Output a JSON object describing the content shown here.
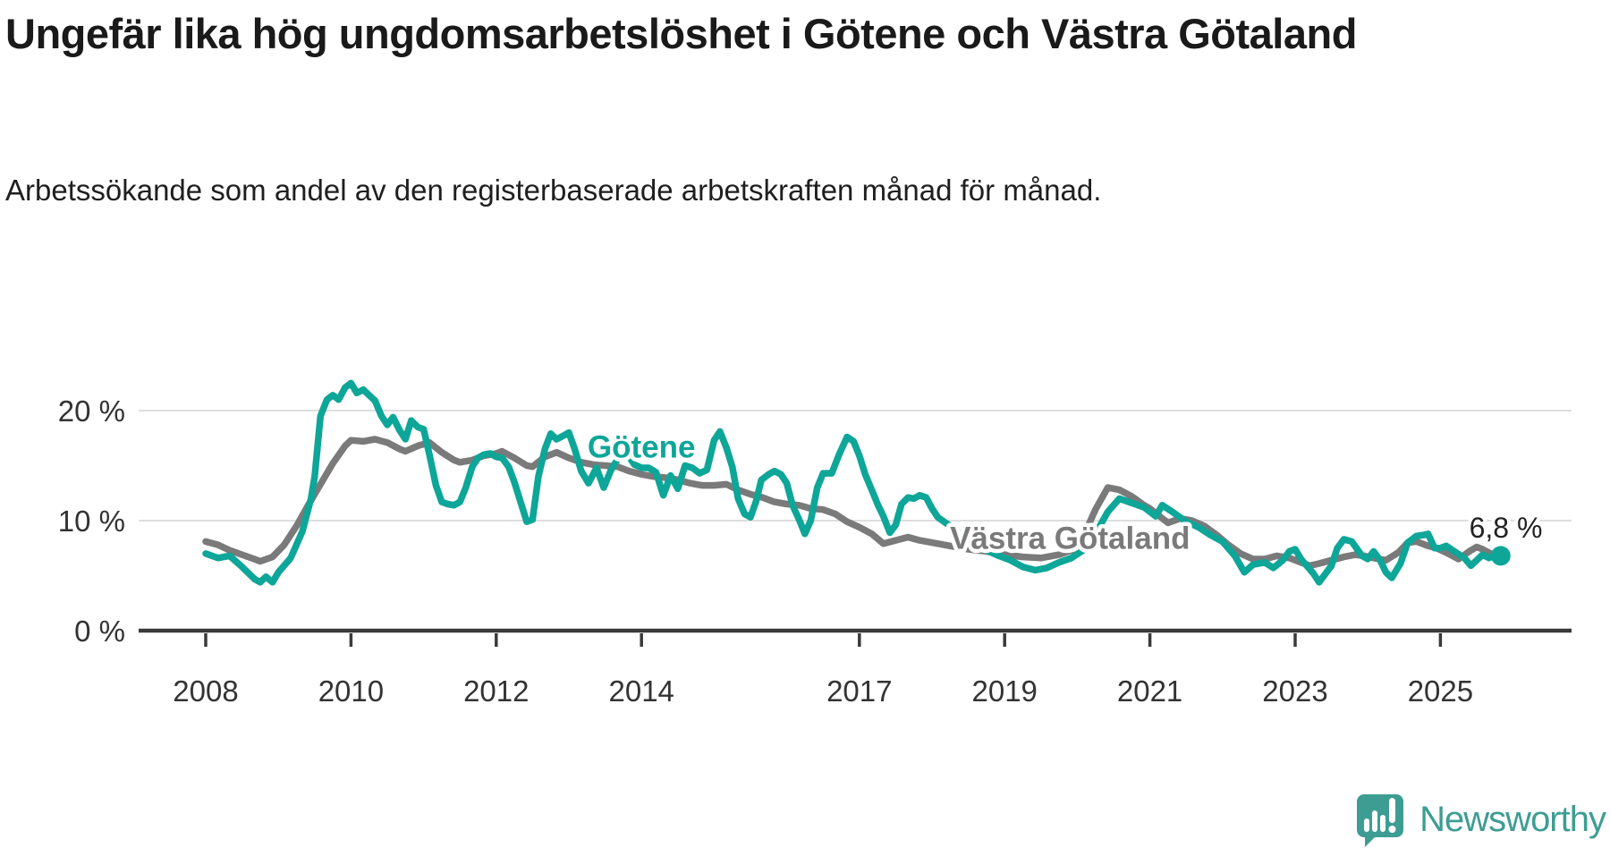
{
  "header": {
    "title": "Ungefär lika hög ungdomsarbetslöshet i Götene och Västra Götaland",
    "subtitle": "Arbetssökande som andel av den registerbaserade arbetskraften månad för månad."
  },
  "branding": {
    "name": "Newsworthy",
    "color": "#3d9d93"
  },
  "colors": {
    "highlight_line": "#0da698",
    "comparison_line": "#7a7a7a",
    "axis": "#3a3a3a",
    "gridline": "#dedede",
    "tick_text": "#333333",
    "annotation_text": "#222222"
  },
  "chart_data": {
    "type": "line",
    "title": "Ungefär lika hög ungdomsarbetslöshet i Götene och Västra Götaland",
    "subtitle": "Arbetssökande som andel av den registerbaserade arbetskraften månad för månad.",
    "unit": "%",
    "grid": true,
    "x_axis": {
      "ticks": [
        2008,
        2010,
        2012,
        2014,
        2017,
        2019,
        2021,
        2023,
        2025
      ],
      "tick_labels": [
        "2008",
        "2010",
        "2012",
        "2014",
        "2017",
        "2019",
        "2021",
        "2023",
        "2025"
      ],
      "range": [
        2008.0,
        2025.83
      ]
    },
    "y_axis": {
      "ticks": [
        0,
        10,
        20
      ],
      "tick_labels": [
        "0 %",
        "10 %",
        "20 %"
      ],
      "range": [
        0,
        23
      ]
    },
    "annotation": {
      "text": "6,8 %",
      "x": 2025.9,
      "y": 9.35
    },
    "series": [
      {
        "name": "Västra Götaland",
        "color": "#7a7a7a",
        "label": {
          "text": "Västra Götaland",
          "x": 2019.9,
          "y": 8.4
        },
        "end_dot": false,
        "points": [
          [
            2008.0,
            8.1
          ],
          [
            2008.17,
            7.8
          ],
          [
            2008.33,
            7.3
          ],
          [
            2008.5,
            6.9
          ],
          [
            2008.67,
            6.5
          ],
          [
            2008.75,
            6.3
          ],
          [
            2008.92,
            6.7
          ],
          [
            2009.08,
            7.8
          ],
          [
            2009.25,
            9.5
          ],
          [
            2009.42,
            11.5
          ],
          [
            2009.58,
            13.3
          ],
          [
            2009.75,
            15.2
          ],
          [
            2009.92,
            16.8
          ],
          [
            2010.0,
            17.3
          ],
          [
            2010.17,
            17.2
          ],
          [
            2010.33,
            17.4
          ],
          [
            2010.5,
            17.1
          ],
          [
            2010.67,
            16.5
          ],
          [
            2010.75,
            16.3
          ],
          [
            2010.92,
            16.8
          ],
          [
            2011.08,
            17.1
          ],
          [
            2011.25,
            16.2
          ],
          [
            2011.42,
            15.5
          ],
          [
            2011.5,
            15.3
          ],
          [
            2011.67,
            15.5
          ],
          [
            2011.83,
            15.9
          ],
          [
            2012.0,
            16.1
          ],
          [
            2012.08,
            16.3
          ],
          [
            2012.25,
            15.7
          ],
          [
            2012.42,
            15.0
          ],
          [
            2012.5,
            14.9
          ],
          [
            2012.67,
            15.8
          ],
          [
            2012.83,
            16.2
          ],
          [
            2013.0,
            15.7
          ],
          [
            2013.17,
            15.3
          ],
          [
            2013.33,
            15.1
          ],
          [
            2013.5,
            15.0
          ],
          [
            2013.67,
            14.9
          ],
          [
            2013.83,
            14.5
          ],
          [
            2014.0,
            14.2
          ],
          [
            2014.17,
            14.0
          ],
          [
            2014.33,
            13.9
          ],
          [
            2014.5,
            13.7
          ],
          [
            2014.67,
            13.4
          ],
          [
            2014.83,
            13.2
          ],
          [
            2015.0,
            13.2
          ],
          [
            2015.17,
            13.3
          ],
          [
            2015.33,
            12.8
          ],
          [
            2015.5,
            12.4
          ],
          [
            2015.67,
            12.1
          ],
          [
            2015.83,
            11.7
          ],
          [
            2016.0,
            11.5
          ],
          [
            2016.17,
            11.4
          ],
          [
            2016.33,
            11.1
          ],
          [
            2016.5,
            11.0
          ],
          [
            2016.67,
            10.6
          ],
          [
            2016.83,
            9.9
          ],
          [
            2017.0,
            9.4
          ],
          [
            2017.17,
            8.8
          ],
          [
            2017.33,
            7.9
          ],
          [
            2017.5,
            8.2
          ],
          [
            2017.67,
            8.5
          ],
          [
            2017.83,
            8.2
          ],
          [
            2018.0,
            8.0
          ],
          [
            2018.25,
            7.7
          ],
          [
            2018.5,
            7.4
          ],
          [
            2018.75,
            7.2
          ],
          [
            2019.0,
            6.9
          ],
          [
            2019.25,
            6.7
          ],
          [
            2019.5,
            6.6
          ],
          [
            2019.75,
            6.9
          ],
          [
            2019.92,
            7.3
          ],
          [
            2020.08,
            8.5
          ],
          [
            2020.25,
            11.0
          ],
          [
            2020.42,
            13.0
          ],
          [
            2020.58,
            12.8
          ],
          [
            2020.75,
            12.2
          ],
          [
            2020.92,
            11.4
          ],
          [
            2021.0,
            11.1
          ],
          [
            2021.17,
            10.2
          ],
          [
            2021.25,
            9.8
          ],
          [
            2021.42,
            10.2
          ],
          [
            2021.58,
            10.0
          ],
          [
            2021.75,
            9.5
          ],
          [
            2021.92,
            8.7
          ],
          [
            2022.08,
            7.8
          ],
          [
            2022.25,
            7.0
          ],
          [
            2022.42,
            6.5
          ],
          [
            2022.58,
            6.5
          ],
          [
            2022.75,
            6.8
          ],
          [
            2022.92,
            6.6
          ],
          [
            2023.08,
            6.2
          ],
          [
            2023.2,
            5.9
          ],
          [
            2023.33,
            6.1
          ],
          [
            2023.5,
            6.4
          ],
          [
            2023.67,
            6.7
          ],
          [
            2023.83,
            6.9
          ],
          [
            2023.95,
            6.8
          ],
          [
            2024.08,
            6.6
          ],
          [
            2024.25,
            6.4
          ],
          [
            2024.42,
            7.1
          ],
          [
            2024.55,
            8.0
          ],
          [
            2024.67,
            8.1
          ],
          [
            2024.83,
            7.7
          ],
          [
            2024.95,
            7.5
          ],
          [
            2025.08,
            7.1
          ],
          [
            2025.25,
            6.5
          ],
          [
            2025.42,
            7.3
          ],
          [
            2025.5,
            7.6
          ],
          [
            2025.58,
            7.4
          ],
          [
            2025.75,
            6.8
          ],
          [
            2025.83,
            6.7
          ]
        ]
      },
      {
        "name": "Götene",
        "color": "#0da698",
        "label": {
          "text": "Götene",
          "x": 2014.0,
          "y": 16.7
        },
        "end_dot": true,
        "end_value": "6,8 %",
        "points": [
          [
            2008.0,
            7.0
          ],
          [
            2008.17,
            6.6
          ],
          [
            2008.33,
            6.8
          ],
          [
            2008.5,
            5.8
          ],
          [
            2008.67,
            4.7
          ],
          [
            2008.75,
            4.4
          ],
          [
            2008.83,
            4.9
          ],
          [
            2008.92,
            4.4
          ],
          [
            2009.0,
            5.3
          ],
          [
            2009.17,
            6.6
          ],
          [
            2009.33,
            9.0
          ],
          [
            2009.45,
            12.0
          ],
          [
            2009.5,
            14.0
          ],
          [
            2009.58,
            19.5
          ],
          [
            2009.67,
            21.0
          ],
          [
            2009.75,
            21.4
          ],
          [
            2009.83,
            21.0
          ],
          [
            2009.92,
            22.1
          ],
          [
            2010.0,
            22.5
          ],
          [
            2010.08,
            21.6
          ],
          [
            2010.17,
            21.9
          ],
          [
            2010.25,
            21.4
          ],
          [
            2010.33,
            20.9
          ],
          [
            2010.42,
            19.5
          ],
          [
            2010.5,
            18.7
          ],
          [
            2010.58,
            19.4
          ],
          [
            2010.67,
            18.2
          ],
          [
            2010.75,
            17.4
          ],
          [
            2010.83,
            19.1
          ],
          [
            2010.92,
            18.5
          ],
          [
            2011.0,
            18.3
          ],
          [
            2011.08,
            16.0
          ],
          [
            2011.17,
            13.2
          ],
          [
            2011.25,
            11.7
          ],
          [
            2011.33,
            11.5
          ],
          [
            2011.42,
            11.4
          ],
          [
            2011.5,
            11.7
          ],
          [
            2011.58,
            13.0
          ],
          [
            2011.67,
            14.9
          ],
          [
            2011.75,
            15.7
          ],
          [
            2011.83,
            16.0
          ],
          [
            2011.92,
            16.1
          ],
          [
            2012.0,
            15.8
          ],
          [
            2012.08,
            15.7
          ],
          [
            2012.17,
            14.9
          ],
          [
            2012.25,
            13.5
          ],
          [
            2012.33,
            11.8
          ],
          [
            2012.42,
            9.9
          ],
          [
            2012.5,
            10.1
          ],
          [
            2012.58,
            14.0
          ],
          [
            2012.67,
            16.5
          ],
          [
            2012.75,
            17.9
          ],
          [
            2012.83,
            17.4
          ],
          [
            2012.92,
            17.7
          ],
          [
            2013.0,
            18.0
          ],
          [
            2013.08,
            16.5
          ],
          [
            2013.17,
            14.5
          ],
          [
            2013.27,
            13.4
          ],
          [
            2013.38,
            14.8
          ],
          [
            2013.48,
            13.0
          ],
          [
            2013.58,
            14.6
          ],
          [
            2013.7,
            15.9
          ],
          [
            2013.8,
            16.1
          ],
          [
            2013.9,
            15.1
          ],
          [
            2014.0,
            14.8
          ],
          [
            2014.1,
            14.8
          ],
          [
            2014.2,
            14.4
          ],
          [
            2014.3,
            12.3
          ],
          [
            2014.4,
            14.1
          ],
          [
            2014.5,
            12.9
          ],
          [
            2014.6,
            15.0
          ],
          [
            2014.7,
            14.8
          ],
          [
            2014.8,
            14.3
          ],
          [
            2014.9,
            14.6
          ],
          [
            2015.0,
            17.3
          ],
          [
            2015.08,
            18.1
          ],
          [
            2015.17,
            16.6
          ],
          [
            2015.25,
            14.9
          ],
          [
            2015.33,
            12.0
          ],
          [
            2015.42,
            10.6
          ],
          [
            2015.5,
            10.3
          ],
          [
            2015.58,
            11.8
          ],
          [
            2015.65,
            13.7
          ],
          [
            2015.75,
            14.2
          ],
          [
            2015.83,
            14.5
          ],
          [
            2015.92,
            14.2
          ],
          [
            2016.0,
            13.4
          ],
          [
            2016.08,
            11.4
          ],
          [
            2016.17,
            10.1
          ],
          [
            2016.25,
            8.8
          ],
          [
            2016.33,
            10.0
          ],
          [
            2016.42,
            13.0
          ],
          [
            2016.5,
            14.3
          ],
          [
            2016.62,
            14.3
          ],
          [
            2016.72,
            16.0
          ],
          [
            2016.83,
            17.6
          ],
          [
            2016.92,
            17.2
          ],
          [
            2017.0,
            15.9
          ],
          [
            2017.08,
            14.2
          ],
          [
            2017.17,
            12.8
          ],
          [
            2017.25,
            11.5
          ],
          [
            2017.33,
            10.4
          ],
          [
            2017.42,
            8.9
          ],
          [
            2017.5,
            9.6
          ],
          [
            2017.58,
            11.5
          ],
          [
            2017.67,
            12.1
          ],
          [
            2017.75,
            12.0
          ],
          [
            2017.83,
            12.3
          ],
          [
            2017.92,
            12.1
          ],
          [
            2018.0,
            11.1
          ],
          [
            2018.08,
            10.3
          ],
          [
            2018.25,
            9.5
          ],
          [
            2018.42,
            8.6
          ],
          [
            2018.58,
            7.9
          ],
          [
            2018.75,
            7.3
          ],
          [
            2018.92,
            6.8
          ],
          [
            2019.08,
            6.4
          ],
          [
            2019.25,
            5.8
          ],
          [
            2019.42,
            5.5
          ],
          [
            2019.58,
            5.7
          ],
          [
            2019.75,
            6.2
          ],
          [
            2019.92,
            6.6
          ],
          [
            2020.08,
            7.3
          ],
          [
            2020.25,
            8.8
          ],
          [
            2020.42,
            10.8
          ],
          [
            2020.58,
            12.0
          ],
          [
            2020.75,
            11.6
          ],
          [
            2020.92,
            11.2
          ],
          [
            2021.08,
            10.4
          ],
          [
            2021.17,
            11.4
          ],
          [
            2021.33,
            10.7
          ],
          [
            2021.5,
            9.9
          ],
          [
            2021.67,
            9.4
          ],
          [
            2021.83,
            8.7
          ],
          [
            2022.0,
            8.1
          ],
          [
            2022.17,
            6.8
          ],
          [
            2022.3,
            5.3
          ],
          [
            2022.42,
            6.0
          ],
          [
            2022.58,
            6.2
          ],
          [
            2022.7,
            5.7
          ],
          [
            2022.83,
            6.4
          ],
          [
            2022.92,
            7.2
          ],
          [
            2023.0,
            7.4
          ],
          [
            2023.08,
            6.5
          ],
          [
            2023.25,
            5.2
          ],
          [
            2023.33,
            4.4
          ],
          [
            2023.5,
            5.9
          ],
          [
            2023.58,
            7.5
          ],
          [
            2023.67,
            8.3
          ],
          [
            2023.78,
            8.1
          ],
          [
            2023.92,
            6.8
          ],
          [
            2024.0,
            6.5
          ],
          [
            2024.08,
            7.2
          ],
          [
            2024.17,
            6.4
          ],
          [
            2024.25,
            5.3
          ],
          [
            2024.33,
            4.8
          ],
          [
            2024.45,
            6.1
          ],
          [
            2024.55,
            8.0
          ],
          [
            2024.67,
            8.6
          ],
          [
            2024.78,
            8.7
          ],
          [
            2024.83,
            8.8
          ],
          [
            2024.92,
            7.5
          ],
          [
            2025.0,
            7.5
          ],
          [
            2025.08,
            7.7
          ],
          [
            2025.17,
            7.3
          ],
          [
            2025.33,
            6.6
          ],
          [
            2025.42,
            5.9
          ],
          [
            2025.5,
            6.4
          ],
          [
            2025.58,
            6.9
          ],
          [
            2025.67,
            6.6
          ],
          [
            2025.75,
            6.9
          ],
          [
            2025.83,
            6.8
          ]
        ]
      }
    ]
  }
}
